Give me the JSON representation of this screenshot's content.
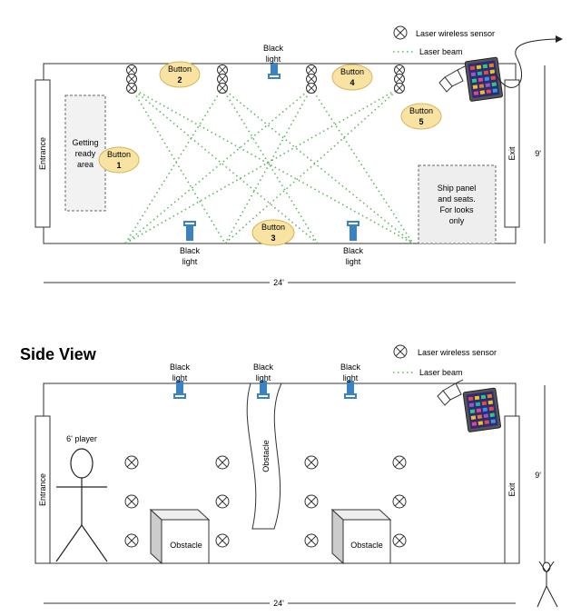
{
  "colors": {
    "button_fill": "#f8e3a3",
    "button_stroke": "#d7b45a",
    "laser_beam": "#5cb85c",
    "black_light": "#3b82c4",
    "panel_fill": "#eeeeee"
  },
  "legend": {
    "sensor_label": "Laser wireless sensor",
    "beam_label": "Laser beam",
    "sensor_icon": "circle-x-icon"
  },
  "top_view": {
    "entrance": "Entrance",
    "exit": "Exit",
    "height": "9'",
    "width": "24'",
    "getting_ready": [
      "Getting",
      "ready",
      "area"
    ],
    "ship_panel": [
      "Ship panel",
      "and seats.",
      "For looks",
      "only"
    ],
    "buttons": [
      {
        "line1": "Button",
        "line2": "1"
      },
      {
        "line1": "Button",
        "line2": "2"
      },
      {
        "line1": "Button",
        "line2": "3"
      },
      {
        "line1": "Button",
        "line2": "4"
      },
      {
        "line1": "Button",
        "line2": "5"
      }
    ],
    "black_light_lines": [
      "Black",
      "light"
    ]
  },
  "side_view": {
    "title": "Side View",
    "entrance": "Entrance",
    "exit": "Exit",
    "height": "9'",
    "width": "24'",
    "player": "6' player",
    "obstacle": "Obstacle",
    "black_light_lines": [
      "Black",
      "light"
    ]
  }
}
